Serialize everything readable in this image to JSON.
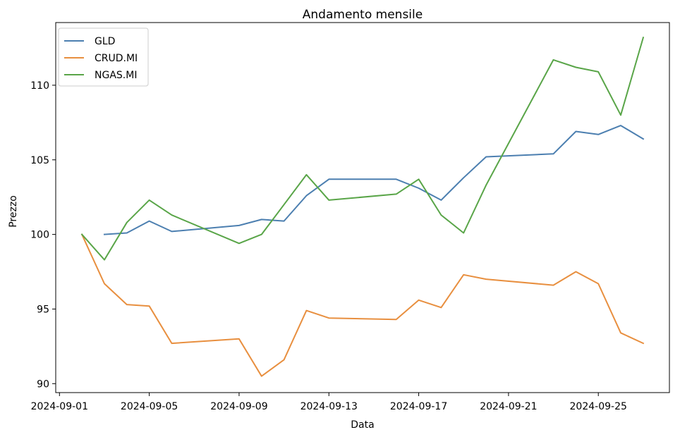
{
  "chart_data": {
    "type": "line",
    "title": "Andamento mensile",
    "xlabel": "Data",
    "ylabel": "Prezzo",
    "x_ticks": [
      "2024-09-01",
      "2024-09-05",
      "2024-09-09",
      "2024-09-13",
      "2024-09-17",
      "2024-09-21",
      "2024-09-25"
    ],
    "y_ticks": [
      90,
      95,
      100,
      105,
      110
    ],
    "xlim": [
      "2024-08-31T20:00",
      "2024-09-28T04:00"
    ],
    "ylim": [
      89.4,
      114.2
    ],
    "grid": false,
    "legend_position": "top-left",
    "series": [
      {
        "name": "GLD",
        "color": "#4c7fb0",
        "points": [
          [
            "2024-09-03",
            100.0
          ],
          [
            "2024-09-04",
            100.1
          ],
          [
            "2024-09-05",
            100.9
          ],
          [
            "2024-09-06",
            100.2
          ],
          [
            "2024-09-09",
            100.6
          ],
          [
            "2024-09-10",
            101.0
          ],
          [
            "2024-09-11",
            100.9
          ],
          [
            "2024-09-12",
            102.6
          ],
          [
            "2024-09-13",
            103.7
          ],
          [
            "2024-09-16",
            103.7
          ],
          [
            "2024-09-17",
            103.1
          ],
          [
            "2024-09-18",
            102.3
          ],
          [
            "2024-09-19",
            103.8
          ],
          [
            "2024-09-20",
            105.2
          ],
          [
            "2024-09-23",
            105.4
          ],
          [
            "2024-09-24",
            106.9
          ],
          [
            "2024-09-25",
            106.7
          ],
          [
            "2024-09-26",
            107.3
          ],
          [
            "2024-09-27",
            106.4
          ]
        ]
      },
      {
        "name": "CRUD.MI",
        "color": "#e88f3f",
        "points": [
          [
            "2024-09-02",
            100.0
          ],
          [
            "2024-09-03",
            96.7
          ],
          [
            "2024-09-04",
            95.3
          ],
          [
            "2024-09-05",
            95.2
          ],
          [
            "2024-09-06",
            92.7
          ],
          [
            "2024-09-09",
            93.0
          ],
          [
            "2024-09-10",
            90.5
          ],
          [
            "2024-09-11",
            91.6
          ],
          [
            "2024-09-12",
            94.9
          ],
          [
            "2024-09-13",
            94.4
          ],
          [
            "2024-09-16",
            94.3
          ],
          [
            "2024-09-17",
            95.6
          ],
          [
            "2024-09-18",
            95.1
          ],
          [
            "2024-09-19",
            97.3
          ],
          [
            "2024-09-20",
            97.0
          ],
          [
            "2024-09-23",
            96.6
          ],
          [
            "2024-09-24",
            97.5
          ],
          [
            "2024-09-25",
            96.7
          ],
          [
            "2024-09-26",
            93.4
          ],
          [
            "2024-09-27",
            92.7
          ]
        ]
      },
      {
        "name": "NGAS.MI",
        "color": "#59a548",
        "points": [
          [
            "2024-09-02",
            100.0
          ],
          [
            "2024-09-03",
            98.3
          ],
          [
            "2024-09-04",
            100.8
          ],
          [
            "2024-09-05",
            102.3
          ],
          [
            "2024-09-06",
            101.3
          ],
          [
            "2024-09-09",
            99.4
          ],
          [
            "2024-09-10",
            100.0
          ],
          [
            "2024-09-11",
            102.0
          ],
          [
            "2024-09-12",
            104.0
          ],
          [
            "2024-09-13",
            102.3
          ],
          [
            "2024-09-16",
            102.7
          ],
          [
            "2024-09-17",
            103.7
          ],
          [
            "2024-09-18",
            101.3
          ],
          [
            "2024-09-19",
            100.1
          ],
          [
            "2024-09-20",
            103.3
          ],
          [
            "2024-09-23",
            111.7
          ],
          [
            "2024-09-24",
            111.2
          ],
          [
            "2024-09-25",
            110.9
          ],
          [
            "2024-09-26",
            108.0
          ],
          [
            "2024-09-27",
            113.2
          ]
        ]
      }
    ]
  }
}
